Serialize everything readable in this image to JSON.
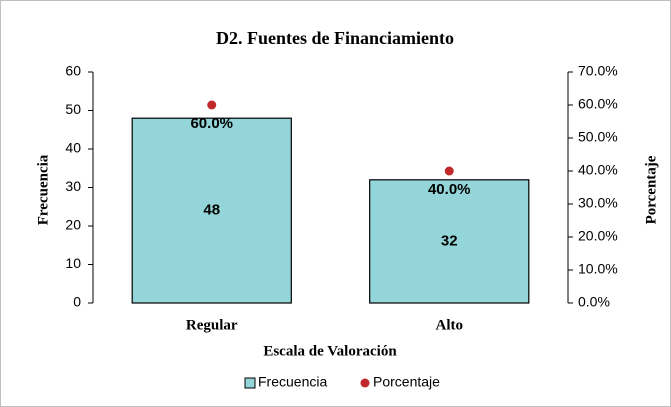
{
  "chart_data": {
    "type": "bar",
    "title": "D2. Fuentes de Financiamiento",
    "x_label": "Escala de Valoración",
    "y_label": "Frecuencia",
    "y2_label": "Porcentaje",
    "categories": [
      "Regular",
      "Alto"
    ],
    "series": [
      {
        "name": "Frecuencia",
        "type": "bar",
        "color": "#93d5d8",
        "values": [
          48,
          32
        ]
      },
      {
        "name": "Porcentaje",
        "type": "scatter",
        "axis": "y2",
        "color": "#c0282a",
        "values": [
          60,
          40
        ],
        "value_labels": [
          "60.0%",
          "40.0%"
        ]
      }
    ],
    "ylim": [
      0,
      60
    ],
    "yticks": [
      0,
      10,
      20,
      30,
      40,
      50,
      60
    ],
    "y2lim": [
      0,
      70
    ],
    "y2ticks": [
      {
        "value": 0,
        "label": "0.0%"
      },
      {
        "value": 10,
        "label": "10.0%"
      },
      {
        "value": 20,
        "label": "20.0%"
      },
      {
        "value": 30,
        "label": "30.0%"
      },
      {
        "value": 40,
        "label": "40.0%"
      },
      {
        "value": 50,
        "label": "50.0%"
      },
      {
        "value": 60,
        "label": "60.0%"
      },
      {
        "value": 70,
        "label": "70.0%"
      }
    ]
  }
}
